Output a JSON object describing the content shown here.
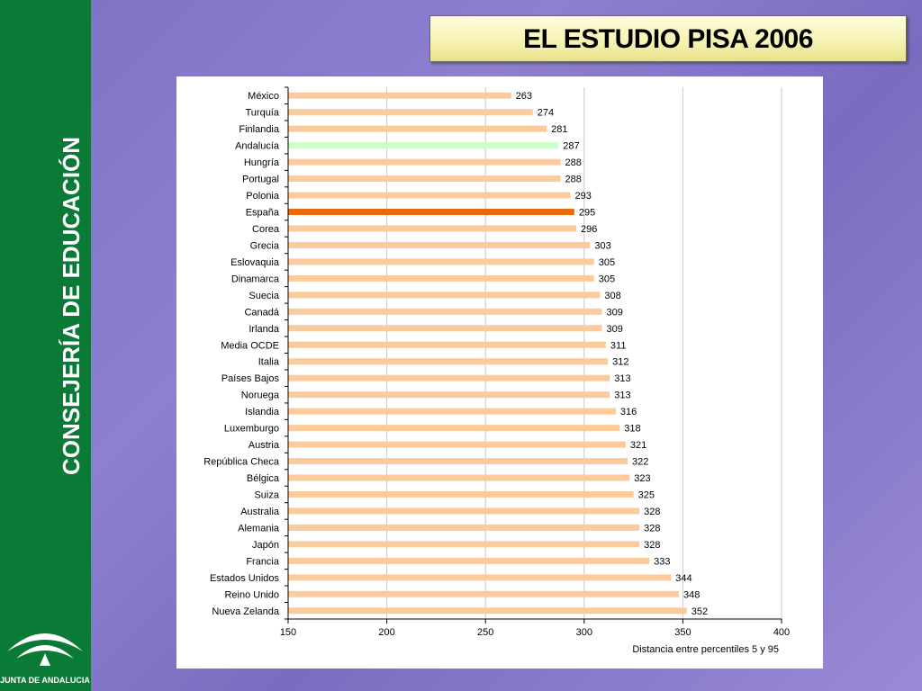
{
  "sidebar": {
    "vertical_text": "CONSEJERÍA DE EDUCACIÓN",
    "logo_text": "JUNTA DE ANDALUCIA"
  },
  "slide": {
    "title": "EL ESTUDIO PISA 2006"
  },
  "colors": {
    "sidebar_green": "#0b7a36",
    "bar_default": "#fbcb9c",
    "bar_andalucia": "#ccffcc",
    "bar_espana": "#e8690c"
  },
  "chart_data": {
    "type": "bar",
    "orientation": "horizontal",
    "categories": [
      "México",
      "Turquía",
      "Finlandia",
      "Andalucía",
      "Hungría",
      "Portugal",
      "Polonia",
      "España",
      "Corea",
      "Grecia",
      "Eslovaquia",
      "Dinamarca",
      "Suecia",
      "Canadá",
      "Irlanda",
      "Media OCDE",
      "Italia",
      "Países Bajos",
      "Noruega",
      "Islandia",
      "Luxemburgo",
      "Austria",
      "República Checa",
      "Bélgica",
      "Suiza",
      "Australia",
      "Alemania",
      "Japón",
      "Francia",
      "Estados Unidos",
      "Reino Unido",
      "Nueva Zelanda"
    ],
    "values": [
      263,
      274,
      281,
      287,
      288,
      288,
      293,
      295,
      296,
      303,
      305,
      305,
      308,
      309,
      309,
      311,
      312,
      313,
      313,
      316,
      318,
      321,
      322,
      323,
      325,
      328,
      328,
      328,
      333,
      344,
      348,
      352
    ],
    "highlight": {
      "Andalucía": "#ccffcc",
      "España": "#e8690c"
    },
    "xlabel": "Distancia entre percentiles 5 y 95",
    "xlim": [
      150,
      400
    ],
    "xticks": [
      150,
      200,
      250,
      300,
      350,
      400
    ],
    "grid": true,
    "data_labels": true
  }
}
